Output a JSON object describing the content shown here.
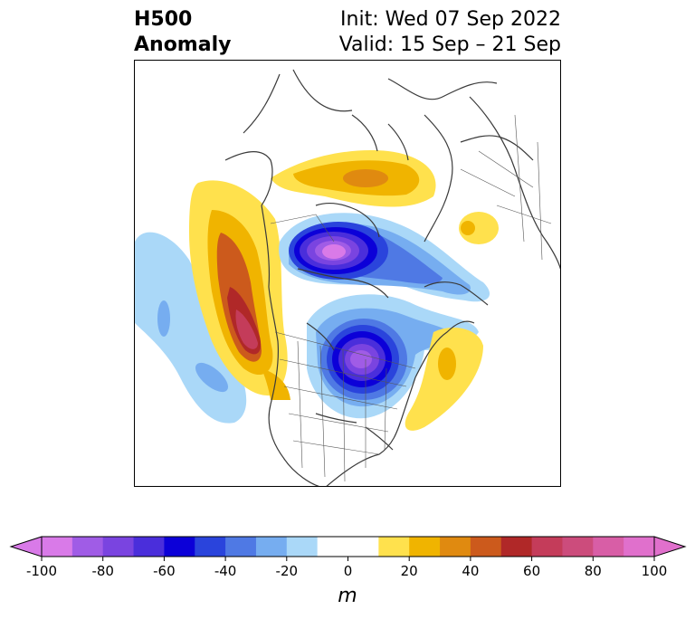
{
  "title": {
    "line1": "H500",
    "line2": "Anomaly",
    "init": "Init: Wed 07 Sep 2022",
    "valid": "Valid: 15 Sep – 21 Sep"
  },
  "colorbar": {
    "unit": "m",
    "ticks": [
      "-100",
      "-80",
      "-60",
      "-40",
      "-20",
      "0",
      "20",
      "40",
      "60",
      "80",
      "100"
    ],
    "levels": [
      -100,
      -90,
      -80,
      -70,
      -60,
      -50,
      -40,
      -30,
      -20,
      -10,
      10,
      20,
      30,
      40,
      50,
      60,
      70,
      80,
      90,
      100
    ],
    "colors": [
      "#d97ae8",
      "#a05ce6",
      "#7a44e0",
      "#4a2edb",
      "#0c00d8",
      "#2a44dc",
      "#4f79e4",
      "#76adf0",
      "#aad8f8",
      "#ffffff",
      "#ffe14d",
      "#f0b400",
      "#e08a10",
      "#cc5a1c",
      "#b02828",
      "#c43c5a",
      "#cc4c7c",
      "#d85ea6",
      "#e070cc"
    ],
    "extend_low": "#d97ae8",
    "extend_high": "#e070cc"
  }
}
